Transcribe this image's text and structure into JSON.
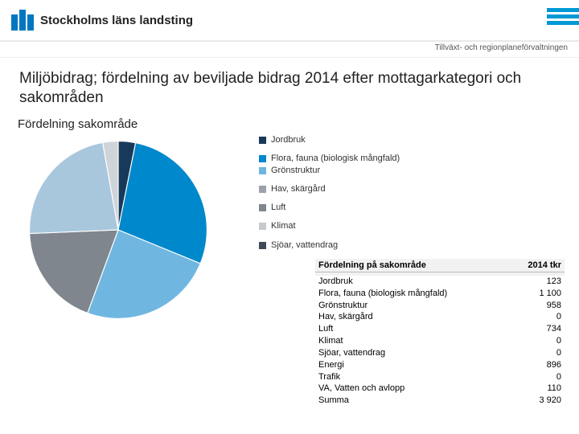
{
  "header": {
    "org_name": "Stockholms läns landsting",
    "department": "Tillväxt- och regionplaneförvaltningen",
    "logo_color": "#0077c0",
    "stripe_color": "#0099d6"
  },
  "title": "Miljöbidrag; fördelning av beviljade bidrag 2014 efter mottagarkategori och sakområden",
  "chart": {
    "subtitle": "Fördelning sakområde",
    "type": "pie",
    "background_color": "#ffffff",
    "slices": [
      {
        "label": "Jordbruk",
        "value": 123,
        "color": "#183a5a"
      },
      {
        "label": "Flora, fauna (biologisk mångfald)",
        "value": 1100,
        "color": "#0088cc"
      },
      {
        "label": "Grönstruktur",
        "value": 958,
        "color": "#6fb7e0"
      },
      {
        "label": "Hav, skärgård",
        "value": 0,
        "color": "#9aa1a8"
      },
      {
        "label": "Luft",
        "value": 734,
        "color": "#7f868d"
      },
      {
        "label": "Klimat",
        "value": 0,
        "color": "#c5cacf"
      },
      {
        "label": "Sjöar, vattendrag",
        "value": 0,
        "color": "#3e4a55"
      }
    ],
    "extra_slice": {
      "label_hidden": "Energi",
      "value": 896,
      "color": "#a8c7dd"
    },
    "extra_slice2": {
      "label_hidden": "VA, Vatten och avlopp",
      "value": 110,
      "color": "#cfd4d8"
    }
  },
  "table": {
    "header_left": "Fördelning på sakområde",
    "header_right": "2014 tkr",
    "rows": [
      {
        "name": "Jordbruk",
        "value": "123"
      },
      {
        "name": "Flora, fauna (biologisk mångfald)",
        "value": "1 100"
      },
      {
        "name": "Grönstruktur",
        "value": "958"
      },
      {
        "name": "Hav, skärgård",
        "value": "0"
      },
      {
        "name": "Luft",
        "value": "734"
      },
      {
        "name": "Klimat",
        "value": "0"
      },
      {
        "name": "Sjöar, vattendrag",
        "value": "0"
      },
      {
        "name": "Energi",
        "value": "896"
      },
      {
        "name": "Trafik",
        "value": "0"
      },
      {
        "name": "VA, Vatten och avlopp",
        "value": "110"
      },
      {
        "name": "Summa",
        "value": "3 920"
      }
    ]
  },
  "legend_items": [
    {
      "label": "Jordbruk",
      "color": "#183a5a"
    },
    {
      "label": "Flora, fauna (biologisk mångfald)",
      "color": "#0088cc"
    },
    {
      "label": "Grönstruktur",
      "color": "#6fb7e0"
    },
    {
      "label": "Hav, skärgård",
      "color": "#9aa1a8"
    },
    {
      "label": "Luft",
      "color": "#7f868d"
    },
    {
      "label": "Klimat",
      "color": "#c5cacf"
    },
    {
      "label": "Sjöar, vattendrag",
      "color": "#3e4a55"
    }
  ]
}
